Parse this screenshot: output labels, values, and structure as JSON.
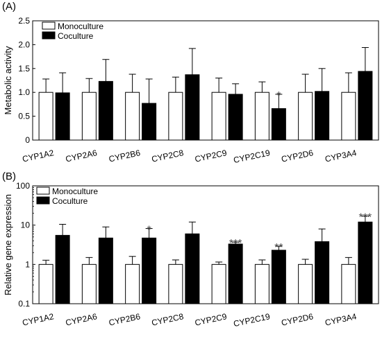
{
  "chart_data": [
    {
      "panel_label": "(A)",
      "type": "bar",
      "ylabel": "Metabolic activity",
      "ylim": [
        0,
        2.5
      ],
      "yscale": "linear",
      "yticks": [
        "0",
        "0.5",
        "1.0",
        "1.5",
        "2.0",
        "2.5"
      ],
      "categories": [
        "CYP1A2",
        "CYP2A6",
        "CYP2B6",
        "CYP2C8",
        "CYP2C9",
        "CYP2C19",
        "CYP2D6",
        "CYP3A4"
      ],
      "series": [
        {
          "name": "Monoculture",
          "color": "#ffffff",
          "values": [
            1.0,
            1.0,
            1.0,
            1.0,
            1.0,
            1.0,
            1.0,
            1.0
          ],
          "errors": [
            0.28,
            0.29,
            0.38,
            0.32,
            0.3,
            0.22,
            0.38,
            0.41
          ],
          "significance": [
            "",
            "",
            "",
            "",
            "",
            "",
            "",
            ""
          ]
        },
        {
          "name": "Coculture",
          "color": "#000000",
          "values": [
            0.99,
            1.23,
            0.77,
            1.37,
            0.96,
            0.66,
            1.02,
            1.44
          ],
          "errors": [
            0.42,
            0.46,
            0.51,
            0.55,
            0.22,
            0.3,
            0.48,
            0.5
          ],
          "significance": [
            "",
            "",
            "",
            "",
            "",
            "*",
            "",
            ""
          ]
        }
      ],
      "legend_position": "top-left"
    },
    {
      "panel_label": "(B)",
      "type": "bar",
      "ylabel": "Relative gene expression",
      "ylim": [
        0.1,
        100
      ],
      "yscale": "log",
      "yticks": [
        "0.1",
        "1",
        "10",
        "100"
      ],
      "categories": [
        "CYP1A2",
        "CYP2A6",
        "CYP2B6",
        "CYP2C8",
        "CYP2C9",
        "CYP2C19",
        "CYP2D6",
        "CYP3A4"
      ],
      "series": [
        {
          "name": "Monoculture",
          "color": "#ffffff",
          "values": [
            1.0,
            1.0,
            1.0,
            1.0,
            1.0,
            1.0,
            1.0,
            1.0
          ],
          "errors": [
            0.28,
            0.5,
            0.6,
            0.3,
            0.15,
            0.3,
            0.35,
            0.5
          ],
          "significance": [
            "",
            "",
            "",
            "",
            "",
            "",
            "",
            ""
          ]
        },
        {
          "name": "Coculture",
          "color": "#000000",
          "values": [
            5.5,
            4.7,
            4.7,
            6.0,
            3.3,
            2.3,
            3.8,
            12.0
          ],
          "errors": [
            5.0,
            4.3,
            3.5,
            6.0,
            0.4,
            0.6,
            4.2,
            5.0
          ],
          "significance": [
            "",
            "",
            "*",
            "",
            "***",
            "**",
            "",
            "***"
          ]
        }
      ],
      "legend_position": "top-left"
    }
  ]
}
